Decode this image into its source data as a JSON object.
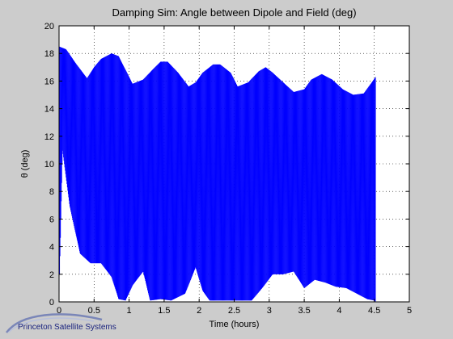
{
  "chart_data": {
    "type": "line",
    "title": "Damping Sim: Angle between Dipole and Field (deg)",
    "xlabel": "Time (hours)",
    "ylabel": "θ (deg)",
    "xlim": [
      0,
      5
    ],
    "ylim": [
      0,
      20
    ],
    "x_ticks": [
      "0",
      "0.5",
      "1",
      "1.5",
      "2",
      "2.5",
      "3",
      "3.5",
      "4",
      "4.5",
      "5"
    ],
    "y_ticks": [
      "0",
      "2",
      "4",
      "6",
      "8",
      "10",
      "12",
      "14",
      "16",
      "18",
      "20"
    ],
    "grid": true,
    "series": [
      {
        "color": "#0000ff",
        "upper_envelope": {
          "x": [
            0.0,
            0.1,
            0.25,
            0.4,
            0.5,
            0.6,
            0.75,
            0.85,
            0.95,
            1.05,
            1.2,
            1.35,
            1.45,
            1.55,
            1.7,
            1.85,
            1.95,
            2.05,
            2.2,
            2.3,
            2.45,
            2.55,
            2.7,
            2.85,
            2.95,
            3.05,
            3.2,
            3.35,
            3.5,
            3.6,
            3.75,
            3.9,
            4.05,
            4.2,
            4.35,
            4.45,
            4.52
          ],
          "y": [
            18.5,
            18.3,
            17.2,
            16.2,
            17.0,
            17.6,
            18.0,
            17.8,
            16.8,
            15.8,
            16.1,
            16.9,
            17.4,
            17.4,
            16.6,
            15.6,
            15.9,
            16.6,
            17.2,
            17.2,
            16.6,
            15.6,
            15.9,
            16.7,
            17.0,
            16.6,
            15.9,
            15.2,
            15.4,
            16.1,
            16.5,
            16.1,
            15.4,
            15.0,
            15.1,
            15.8,
            16.3
          ]
        },
        "lower_envelope": {
          "x": [
            0.0,
            0.05,
            0.15,
            0.3,
            0.45,
            0.6,
            0.75,
            0.85,
            0.95,
            1.05,
            1.2,
            1.3,
            1.45,
            1.6,
            1.8,
            1.95,
            2.05,
            2.15,
            2.3,
            2.45,
            2.6,
            2.75,
            2.9,
            3.05,
            3.2,
            3.35,
            3.5,
            3.65,
            3.8,
            3.95,
            4.1,
            4.25,
            4.4,
            4.5,
            4.52
          ],
          "y": [
            0.0,
            11.0,
            7.0,
            3.5,
            2.8,
            2.8,
            1.8,
            0.2,
            0.1,
            1.2,
            2.2,
            0.1,
            0.2,
            0.1,
            0.6,
            2.5,
            0.8,
            0.1,
            0.1,
            0.1,
            0.1,
            0.1,
            1.0,
            2.0,
            2.0,
            2.2,
            1.0,
            1.6,
            1.4,
            1.1,
            1.0,
            0.6,
            0.2,
            0.1,
            0.0
          ]
        }
      }
    ]
  },
  "logo": {
    "text": "Princeton Satellite Systems"
  }
}
